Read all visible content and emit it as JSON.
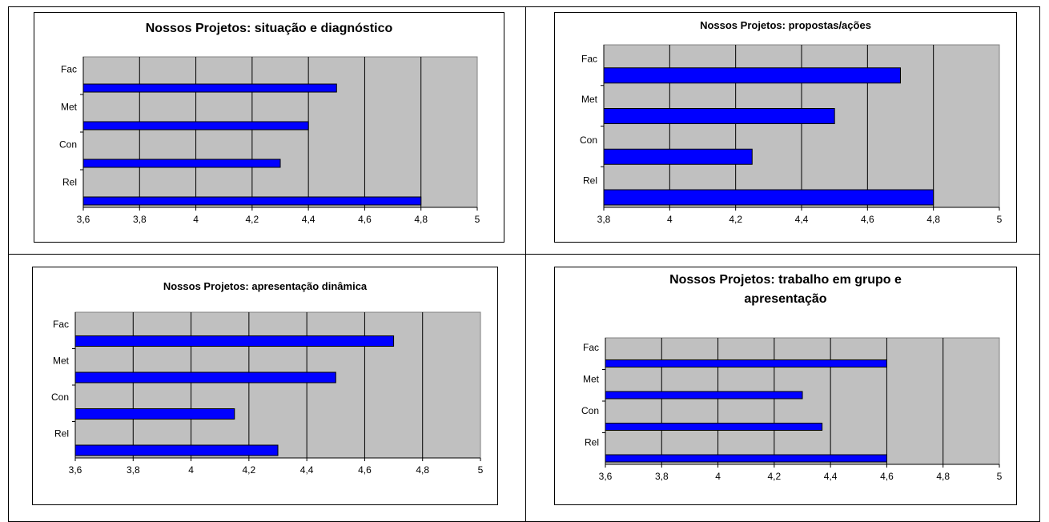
{
  "chart_data": [
    {
      "type": "bar",
      "orientation": "horizontal",
      "title": "Nossos Projetos: situação e diagnóstico",
      "categories": [
        "Fac",
        "Met",
        "Con",
        "Rel"
      ],
      "values": [
        4.5,
        4.4,
        4.3,
        4.8
      ],
      "xlim": [
        3.6,
        5
      ],
      "xticks": [
        "3,6",
        "3,8",
        "4",
        "4,2",
        "4,4",
        "4,6",
        "4,8",
        "5"
      ],
      "grid": true,
      "legend": "none",
      "bar_color": "#0000ff",
      "plot_background": "#c0c0c0"
    },
    {
      "type": "bar",
      "orientation": "horizontal",
      "title": "Nossos Projetos: propostas/ações",
      "categories": [
        "Fac",
        "Met",
        "Con",
        "Rel"
      ],
      "values": [
        4.7,
        4.5,
        4.25,
        4.8
      ],
      "xlim": [
        3.8,
        5
      ],
      "xticks": [
        "3,8",
        "4",
        "4,2",
        "4,4",
        "4,6",
        "4,8",
        "5"
      ],
      "grid": true,
      "legend": "none",
      "bar_color": "#0000ff",
      "plot_background": "#c0c0c0"
    },
    {
      "type": "bar",
      "orientation": "horizontal",
      "title": "Nossos Projetos: apresentação dinâmica",
      "categories": [
        "Fac",
        "Met",
        "Con",
        "Rel"
      ],
      "values": [
        4.7,
        4.5,
        4.15,
        4.3
      ],
      "xlim": [
        3.6,
        5
      ],
      "xticks": [
        "3,6",
        "3,8",
        "4",
        "4,2",
        "4,4",
        "4,6",
        "4,8",
        "5"
      ],
      "grid": true,
      "legend": "none",
      "bar_color": "#0000ff",
      "plot_background": "#c0c0c0"
    },
    {
      "type": "bar",
      "orientation": "horizontal",
      "title": "Nossos Projetos: trabalho em grupo e apresentação",
      "categories": [
        "Fac",
        "Met",
        "Con",
        "Rel"
      ],
      "values": [
        4.6,
        4.3,
        4.37,
        4.6
      ],
      "xlim": [
        3.6,
        5
      ],
      "xticks": [
        "3,6",
        "3,8",
        "4",
        "4,2",
        "4,4",
        "4,6",
        "4,8",
        "5"
      ],
      "grid": true,
      "legend": "none",
      "bar_color": "#0000ff",
      "plot_background": "#c0c0c0"
    }
  ]
}
